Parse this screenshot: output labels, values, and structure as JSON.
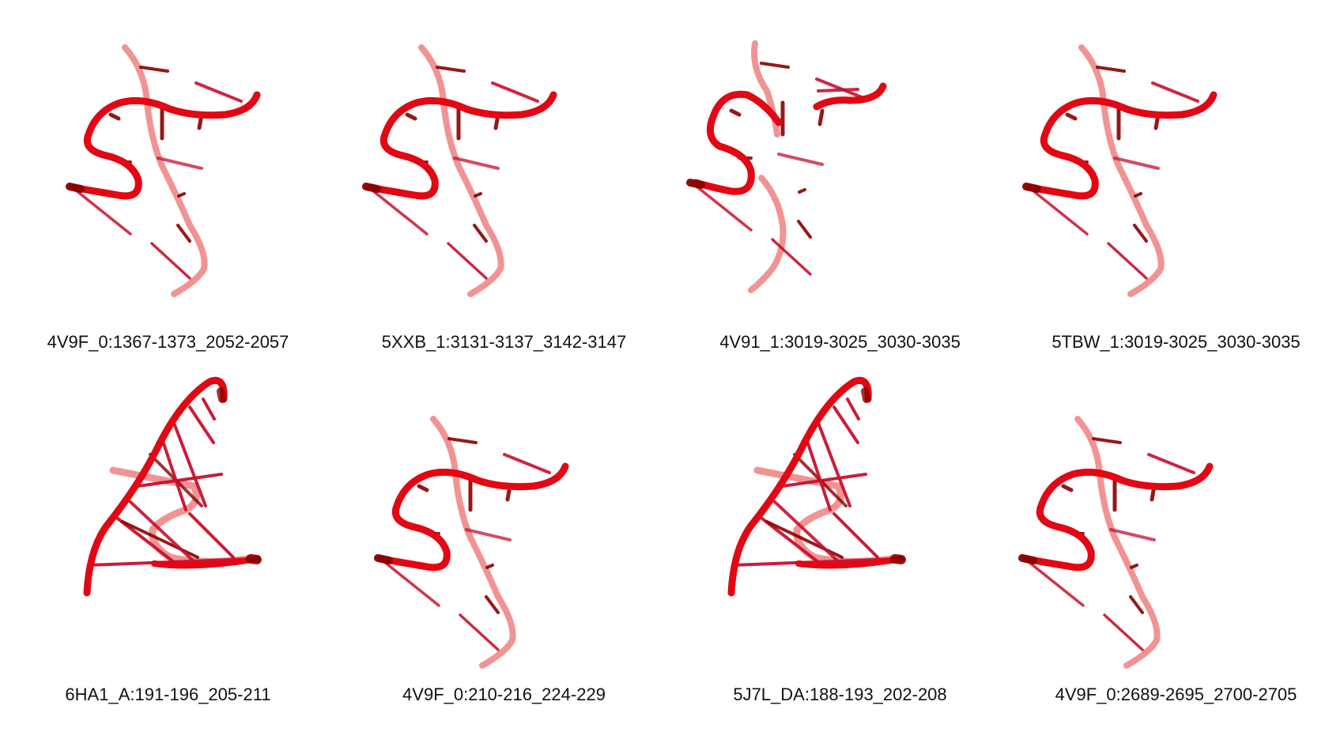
{
  "panels": [
    {
      "label": "4V9F_0:1367-1373_2052-2057",
      "shape": "kink-turn",
      "variant": "a"
    },
    {
      "label": "5XXB_1:3131-3137_3142-3147",
      "shape": "kink-turn",
      "variant": "b"
    },
    {
      "label": "4V91_1:3019-3025_3030-3035",
      "shape": "kink-turn-broken",
      "variant": "c"
    },
    {
      "label": "5TBW_1:3019-3025_3030-3035",
      "shape": "kink-turn",
      "variant": "d"
    },
    {
      "label": "6HA1_A:191-196_205-211",
      "shape": "triangle-fold",
      "variant": "e"
    },
    {
      "label": "4V9F_0:210-216_224-229",
      "shape": "kink-turn",
      "variant": "f"
    },
    {
      "label": "5J7L_DA:188-193_202-208",
      "shape": "triangle-fold",
      "variant": "g"
    },
    {
      "label": "4V9F_0:2689-2695_2700-2705",
      "shape": "kink-turn",
      "variant": "h"
    }
  ],
  "colors": {
    "backbone_front": "#e30613",
    "backbone_back": "#f08080",
    "base_dark": "#8b0000",
    "base_mid": "#c8102e",
    "caption_text": "#111111"
  }
}
